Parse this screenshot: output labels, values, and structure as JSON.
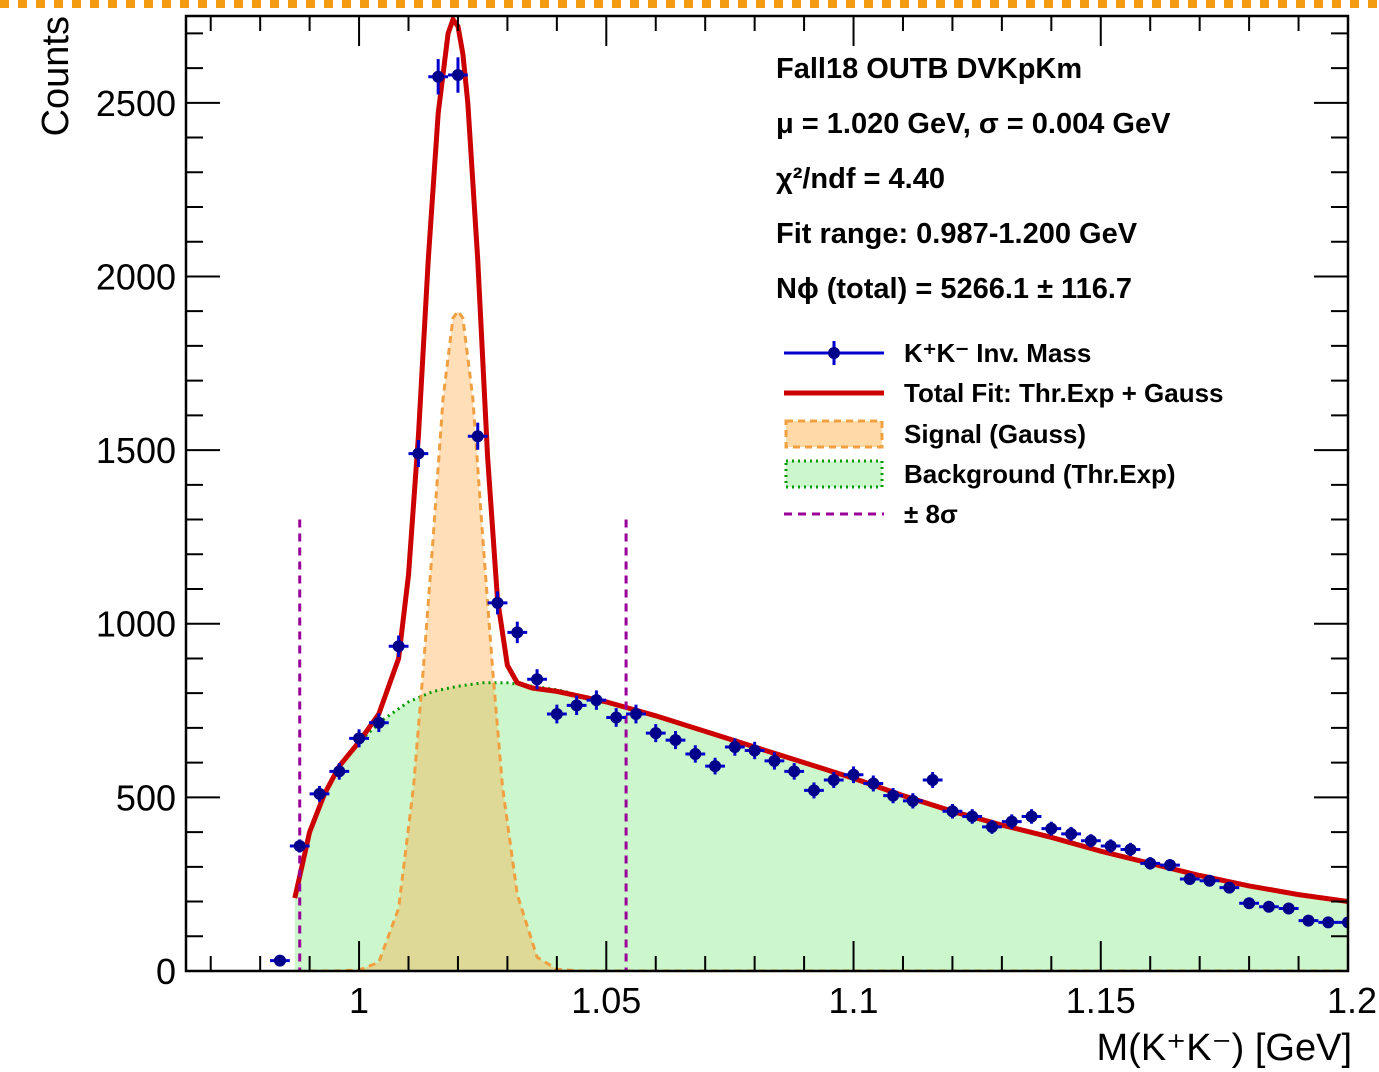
{
  "chart_data": {
    "type": "line",
    "xlabel": "M(K⁺K⁻) [GeV]",
    "ylabel": "Counts",
    "xlim": [
      0.965,
      1.2
    ],
    "ylim": [
      0,
      2750
    ],
    "x_ticks": [
      1,
      1.05,
      1.1,
      1.15,
      1.2
    ],
    "x_tick_labels": [
      "1",
      "1.05",
      "1.1",
      "1.15",
      "1.2"
    ],
    "y_ticks": [
      0,
      500,
      1000,
      1500,
      2000,
      2500
    ],
    "y_tick_labels": [
      "0",
      "500",
      "1000",
      "1500",
      "2000",
      "2500"
    ],
    "info_lines": [
      "Fall18 OUTB DVKpKm",
      "μ = 1.020 GeV, σ = 0.004 GeV",
      "χ²/ndf = 4.40",
      "Fit range: 0.987-1.200 GeV",
      "Nϕ (total) = 5266.1 ± 116.7"
    ],
    "legend": {
      "placement": "top-right",
      "entries": [
        "K⁺K⁻ Inv. Mass",
        "Total Fit: Thr.Exp + Gauss",
        "Signal (Gauss)",
        "Background (Thr.Exp)",
        "± 8σ"
      ]
    },
    "bin_width": 0.004,
    "data_points": {
      "name": "K⁺K⁻ Inv. Mass",
      "color": "#00008b",
      "x": [
        0.984,
        0.988,
        0.992,
        0.996,
        1.0,
        1.004,
        1.008,
        1.012,
        1.016,
        1.02,
        1.024,
        1.028,
        1.032,
        1.036,
        1.04,
        1.044,
        1.048,
        1.052,
        1.056,
        1.06,
        1.064,
        1.068,
        1.072,
        1.076,
        1.08,
        1.084,
        1.088,
        1.092,
        1.096,
        1.1,
        1.104,
        1.108,
        1.112,
        1.116,
        1.12,
        1.124,
        1.128,
        1.132,
        1.136,
        1.14,
        1.144,
        1.148,
        1.152,
        1.156,
        1.16,
        1.164,
        1.168,
        1.172,
        1.176,
        1.18,
        1.184,
        1.188,
        1.192,
        1.196,
        1.2
      ],
      "y": [
        30,
        360,
        510,
        575,
        670,
        715,
        935,
        1490,
        2575,
        2580,
        1540,
        1060,
        975,
        840,
        740,
        765,
        780,
        730,
        740,
        685,
        665,
        625,
        590,
        645,
        635,
        605,
        575,
        520,
        550,
        565,
        540,
        505,
        490,
        550,
        460,
        445,
        415,
        430,
        445,
        410,
        395,
        375,
        360,
        350,
        310,
        305,
        265,
        260,
        240,
        195,
        185,
        180,
        145,
        140,
        140
      ],
      "err": [
        6,
        19,
        23,
        24,
        26,
        27,
        31,
        39,
        51,
        51,
        39,
        33,
        31,
        29,
        27,
        28,
        28,
        27,
        27,
        26,
        26,
        25,
        24,
        25,
        25,
        25,
        24,
        23,
        23,
        24,
        23,
        22,
        22,
        23,
        21,
        21,
        20,
        21,
        21,
        20,
        20,
        19,
        19,
        19,
        18,
        17,
        16,
        16,
        15,
        14,
        14,
        13,
        12,
        12,
        12
      ]
    },
    "total_fit": {
      "name": "Total Fit: Thr.Exp + Gauss",
      "color": "#cc0000",
      "x": [
        0.987,
        0.99,
        0.993,
        0.996,
        1.0,
        1.004,
        1.008,
        1.01,
        1.012,
        1.014,
        1.016,
        1.018,
        1.019,
        1.02,
        1.021,
        1.022,
        1.024,
        1.026,
        1.028,
        1.03,
        1.032,
        1.035,
        1.04,
        1.05,
        1.06,
        1.07,
        1.08,
        1.09,
        1.1,
        1.11,
        1.12,
        1.13,
        1.14,
        1.15,
        1.16,
        1.17,
        1.18,
        1.19,
        1.2
      ],
      "y": [
        210,
        400,
        510,
        590,
        660,
        740,
        900,
        1140,
        1540,
        2050,
        2470,
        2700,
        2740,
        2720,
        2640,
        2500,
        2050,
        1480,
        1070,
        880,
        830,
        815,
        805,
        775,
        735,
        690,
        645,
        600,
        555,
        505,
        460,
        420,
        385,
        345,
        310,
        275,
        245,
        220,
        200
      ]
    },
    "signal": {
      "name": "Signal (Gauss)",
      "color": "#ffa033",
      "x": [
        0.99,
        0.995,
        1.0,
        1.004,
        1.008,
        1.011,
        1.013,
        1.015,
        1.017,
        1.019,
        1.02,
        1.021,
        1.023,
        1.025,
        1.027,
        1.029,
        1.032,
        1.036,
        1.04,
        1.045,
        1.05,
        1.2
      ],
      "y": [
        0,
        0,
        3,
        25,
        180,
        530,
        870,
        1250,
        1650,
        1880,
        1900,
        1880,
        1650,
        1250,
        870,
        530,
        220,
        40,
        5,
        0,
        0,
        0
      ]
    },
    "background": {
      "name": "Background (Thr.Exp)",
      "color": "#009900",
      "x": [
        0.987,
        0.99,
        0.993,
        0.996,
        1.0,
        1.005,
        1.01,
        1.015,
        1.02,
        1.025,
        1.03,
        1.04,
        1.05,
        1.06,
        1.07,
        1.08,
        1.09,
        1.1,
        1.11,
        1.12,
        1.13,
        1.14,
        1.15,
        1.16,
        1.17,
        1.18,
        1.19,
        1.2
      ],
      "y": [
        210,
        400,
        510,
        590,
        660,
        725,
        775,
        805,
        820,
        830,
        830,
        810,
        775,
        735,
        690,
        645,
        600,
        555,
        505,
        460,
        420,
        385,
        345,
        310,
        275,
        245,
        220,
        200
      ]
    },
    "sigma_lines": {
      "name": "± 8σ",
      "color": "#990099",
      "x": [
        0.988,
        1.054
      ],
      "top": 1300
    }
  }
}
